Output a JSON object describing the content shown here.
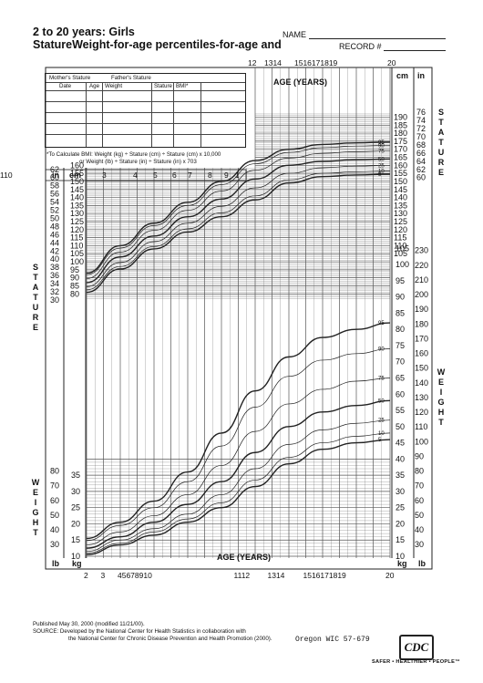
{
  "header": {
    "title_line1": "2 to 20 years: Girls",
    "title_line2": "StatureWeight-for-age percentiles-for-age and",
    "name_label": "NAME",
    "record_label": "RECORD #"
  },
  "side_labels": {
    "stature_left": "S\nT\nA\nT\nU\nR\nE",
    "weight_left": "W\nE\nI\nG\nH\nT",
    "stature_right": "S\nT\nA\nT\nU\nR\nE",
    "weight_right": "W\nE\nI\nG\nH\nT"
  },
  "record_table": {
    "headers_row1": [
      "Mother's Stature",
      "Father's Stature"
    ],
    "headers_row2": [
      "Date",
      "Age",
      "Weight",
      "Stature",
      "BMI*"
    ]
  },
  "bmi_note": {
    "line1": "*To Calculate BMI: Weight (kg) ÷ Stature (cm) ÷ Stature (cm) x 10,000",
    "line2": "or Weight (lb) ÷ Stature (in) ÷ Stature (in) x 703"
  },
  "footer": {
    "published": "Published May 30, 2000 (modified 11/21/00).",
    "source1": "SOURCE: Developed by the National Center for Health Statistics in collaboration with",
    "source2": "the National Center for Chronic Disease Prevention and Health Promotion (2000).",
    "oregon": "Oregon WIC 57-679",
    "logo": "CDC",
    "tagline": "SAFER • HEALTHIER • PEOPLE™"
  },
  "chart_data": {
    "type": "line",
    "title": "2 to 20 years: Girls",
    "xlabel": "AGE (YEARS)",
    "x_ticks_top": [
      "12",
      "13",
      "14",
      "15",
      "16",
      "17",
      "18",
      "19",
      "20"
    ],
    "x_ticks_top_display": [
      "12",
      "1314",
      "1516171819",
      "20"
    ],
    "x_ticks_bottom_display": [
      "2",
      "3",
      "45678910",
      "1112",
      "1314",
      "1516171819",
      "20"
    ],
    "x_ticks_stature_band_display": [
      "cm",
      "3",
      "4",
      "5",
      "6",
      "7",
      "8",
      "9",
      "1",
      "110"
    ],
    "xlim": [
      2,
      20
    ],
    "unit_labels": {
      "in": "in",
      "cm": "cm",
      "lb": "lb",
      "kg": "kg"
    },
    "stature_cm_ticks": [
      80,
      85,
      90,
      95,
      100,
      105,
      110,
      115,
      120,
      125,
      130,
      135,
      140,
      145,
      150,
      155,
      160,
      165,
      170,
      175,
      180,
      185,
      190
    ],
    "stature_in_ticks": [
      30,
      32,
      34,
      36,
      38,
      40,
      42,
      44,
      46,
      48,
      50,
      52,
      54,
      56,
      58,
      60,
      62,
      64,
      66,
      68,
      70,
      72,
      74,
      76
    ],
    "weight_kg_ticks": [
      10,
      15,
      20,
      25,
      30,
      35,
      40,
      45,
      50,
      55,
      60,
      65,
      70,
      75,
      80,
      85,
      90,
      95,
      100,
      105
    ],
    "weight_lb_ticks": [
      30,
      40,
      50,
      60,
      70,
      80,
      90,
      100,
      110,
      120,
      130,
      140,
      150,
      160,
      170,
      180,
      190,
      200,
      210,
      220,
      230
    ],
    "percentile_labels": [
      "95",
      "90",
      "75",
      "50",
      "25",
      "10",
      "5"
    ],
    "stature_ages": [
      2,
      4,
      6,
      8,
      10,
      12,
      14,
      16,
      18,
      20
    ],
    "stature_series": [
      {
        "name": "95",
        "values": [
          93,
          110,
          124,
          137,
          150,
          163,
          170,
          173,
          174,
          174.5
        ]
      },
      {
        "name": "90",
        "values": [
          92,
          108.5,
          122.5,
          135,
          148,
          161,
          168,
          171,
          172,
          172.5
        ]
      },
      {
        "name": "75",
        "values": [
          89.5,
          106,
          119.5,
          132,
          144,
          157,
          164.5,
          167.5,
          168.5,
          169
        ]
      },
      {
        "name": "50",
        "values": [
          87,
          103,
          116,
          128,
          139,
          151.5,
          160,
          162.5,
          163.5,
          164
        ]
      },
      {
        "name": "25",
        "values": [
          84.5,
          99.5,
          112.5,
          124,
          134.5,
          146,
          155,
          158.5,
          159.5,
          160
        ]
      },
      {
        "name": "10",
        "values": [
          82.5,
          97,
          109.5,
          120.5,
          130.5,
          141,
          151,
          155,
          156,
          156.5
        ]
      },
      {
        "name": "5",
        "values": [
          81,
          95.5,
          108,
          118.5,
          128,
          138.5,
          149,
          153,
          154,
          154.5
        ]
      }
    ],
    "weight_ages": [
      2,
      4,
      6,
      8,
      10,
      12,
      14,
      16,
      18,
      20
    ],
    "weight_series": [
      {
        "name": "95",
        "values": [
          15.5,
          20.5,
          27,
          36,
          48,
          61,
          71.5,
          77.5,
          80,
          82
        ]
      },
      {
        "name": "90",
        "values": [
          14.8,
          19.5,
          25,
          33,
          44,
          56,
          65.5,
          70.5,
          72.5,
          74
        ]
      },
      {
        "name": "75",
        "values": [
          13.5,
          17.5,
          22.5,
          29,
          38,
          48.5,
          57,
          61.5,
          64,
          65
        ]
      },
      {
        "name": "50",
        "values": [
          12.5,
          16,
          20.5,
          26,
          33,
          42,
          50,
          54.5,
          56.5,
          58
        ]
      },
      {
        "name": "25",
        "values": [
          11.5,
          15,
          18.5,
          23,
          29,
          37,
          44.5,
          49,
          51,
          52
        ]
      },
      {
        "name": "10",
        "values": [
          11,
          14,
          17.5,
          21.5,
          26.5,
          33.5,
          40.5,
          45,
          47,
          48
        ]
      },
      {
        "name": "5",
        "values": [
          10.5,
          13.5,
          16.5,
          20.5,
          25,
          31.5,
          38.5,
          43,
          45,
          46
        ]
      }
    ],
    "grid": true,
    "line_color": "#222222",
    "grid_color": "#555555"
  }
}
